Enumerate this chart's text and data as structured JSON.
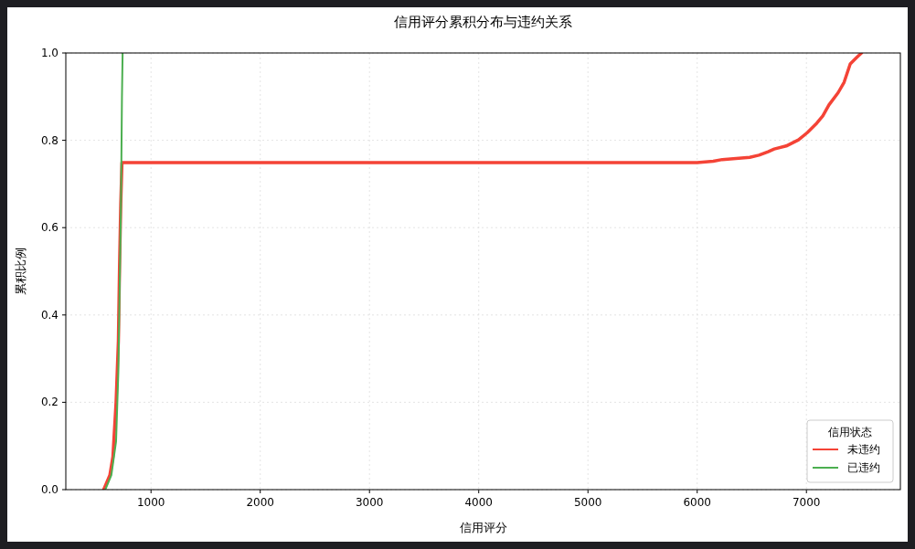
{
  "chart_data": {
    "type": "line",
    "title": "信用评分累积分布与违约关系",
    "xlabel": "信用评分",
    "ylabel": "累积比例",
    "legend_title": "信用状态",
    "series": [
      {
        "name": "未违约",
        "color": "#f44336",
        "x": [
          567,
          623,
          651,
          680,
          701,
          712,
          723,
          734,
          6000,
          6147,
          6230,
          6481,
          6565,
          6649,
          6705,
          6815,
          6927,
          7010,
          7094,
          7150,
          7206,
          7290,
          7345,
          7401,
          7457,
          7504
        ],
        "values": [
          0,
          0.033,
          0.075,
          0.2,
          0.34,
          0.515,
          0.655,
          0.749,
          0.749,
          0.752,
          0.756,
          0.761,
          0.766,
          0.774,
          0.78,
          0.787,
          0.801,
          0.818,
          0.839,
          0.856,
          0.881,
          0.909,
          0.933,
          0.975,
          0.989,
          1.0
        ]
      },
      {
        "name": "已违约",
        "color": "#4caf50",
        "x": [
          582,
          637,
          680,
          701,
          712,
          723,
          729,
          734,
          740
        ],
        "values": [
          0,
          0.033,
          0.11,
          0.27,
          0.445,
          0.62,
          0.76,
          0.9,
          1.0
        ]
      }
    ],
    "xlim": [
      220,
      7860
    ],
    "xticks": [
      1000,
      2000,
      3000,
      4000,
      5000,
      6000,
      7000
    ],
    "ylim": [
      0,
      1
    ],
    "yticks": [
      {
        "value": 0,
        "label": "0.0"
      },
      {
        "value": 0.2,
        "label": "0.2"
      },
      {
        "value": 0.4,
        "label": "0.4"
      },
      {
        "value": 0.6,
        "label": "0.6"
      },
      {
        "value": 0.8,
        "label": "0.8"
      },
      {
        "value": 1,
        "label": "1.0"
      }
    ],
    "grid": true,
    "legend": "bottom right",
    "line_style": "solid",
    "marker": "none"
  }
}
